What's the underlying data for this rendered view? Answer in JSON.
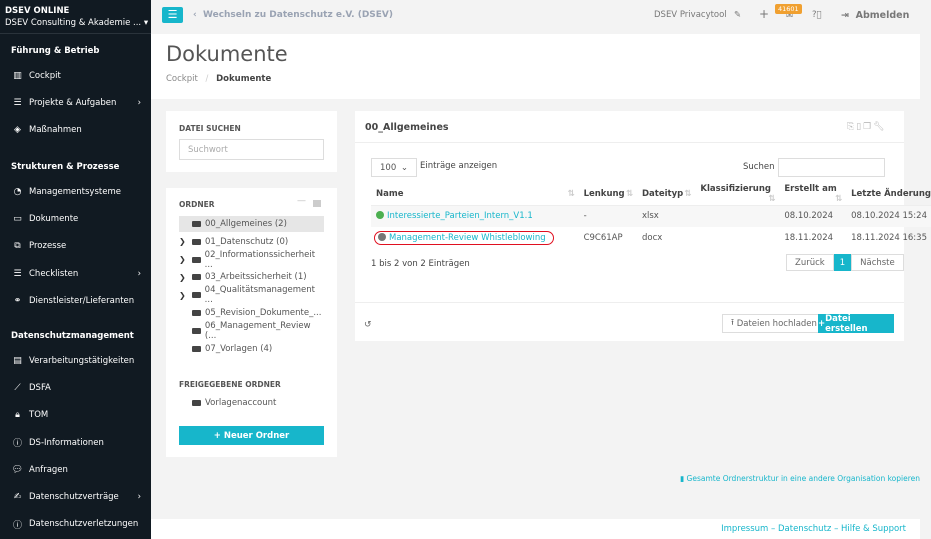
{
  "sidebar": {
    "org_title": "DSEV ONLINE",
    "org_name": "DSEV Consulting & Akademie ...",
    "sections": [
      {
        "title": "Führung & Betrieb",
        "items": [
          {
            "label": "Cockpit",
            "icon": "chart-icon"
          },
          {
            "label": "Projekte & Aufgaben",
            "icon": "list-icon",
            "chevron": true
          },
          {
            "label": "Maßnahmen",
            "icon": "diamond-icon"
          }
        ]
      },
      {
        "title": "Strukturen & Prozesse",
        "items": [
          {
            "label": "Managementsysteme",
            "icon": "gauge-icon"
          },
          {
            "label": "Dokumente",
            "icon": "folder-icon"
          },
          {
            "label": "Prozesse",
            "icon": "process-icon"
          },
          {
            "label": "Checklisten",
            "icon": "list-icon",
            "chevron": true
          },
          {
            "label": "Dienstleister/Lieferanten",
            "icon": "handshake-icon"
          }
        ]
      },
      {
        "title": "Datenschutzmanagement",
        "items": [
          {
            "label": "Verarbeitungstätigkeiten",
            "icon": "table-icon"
          },
          {
            "label": "DSFA",
            "icon": "chart-line-icon"
          },
          {
            "label": "TOM",
            "icon": "lock-icon"
          },
          {
            "label": "DS-Informationen",
            "icon": "info-icon"
          },
          {
            "label": "Anfragen",
            "icon": "chat-icon"
          },
          {
            "label": "Datenschutzverträge",
            "icon": "contract-icon",
            "chevron": true
          },
          {
            "label": "Datenschutzverletzungen",
            "icon": "alert-icon"
          }
        ]
      }
    ]
  },
  "topbar": {
    "switch_label": "Wechseln zu Datenschutz e.V. (DSEV)",
    "app_name": "DSEV Privacytool",
    "mail_badge": "41601",
    "logout": "Abmelden"
  },
  "header": {
    "title": "Dokumente",
    "breadcrumb": [
      "Cockpit",
      "Dokumente"
    ]
  },
  "file_search": {
    "label": "DATEI SUCHEN",
    "placeholder": "Suchwort"
  },
  "folders": {
    "label": "ORDNER",
    "items": [
      {
        "name": "00_Allgemeines (2)",
        "expandable": false,
        "active": true
      },
      {
        "name": "01_Datenschutz (0)",
        "expandable": true
      },
      {
        "name": "02_Informationssicherheit ...",
        "expandable": true
      },
      {
        "name": "03_Arbeitssicherheit (1)",
        "expandable": true
      },
      {
        "name": "04_Qualitätsmanagement ...",
        "expandable": true
      },
      {
        "name": "05_Revision_Dokumente_...",
        "expandable": false
      },
      {
        "name": "06_Management_Review (...",
        "expandable": false
      },
      {
        "name": "07_Vorlagen (4)",
        "expandable": false
      }
    ],
    "shared_label": "FREIGEGEBENE ORDNER",
    "shared_items": [
      "Vorlagenaccount"
    ],
    "new_folder": "Neuer Ordner"
  },
  "main": {
    "title": "00_Allgemeines",
    "page_size": "100",
    "entries_label": "Einträge anzeigen",
    "search_label": "Suchen",
    "columns": [
      "Name",
      "Lenkung",
      "Dateityp",
      "Klassifizierung",
      "Erstellt am",
      "Letzte Änderung"
    ],
    "rows": [
      {
        "status_color": "#4caf50",
        "name": "Interessierte_Parteien_Intern_V1.1",
        "lenkung": "-",
        "type": "xlsx",
        "class": "",
        "created": "08.10.2024",
        "modified": "08.10.2024 15:24"
      },
      {
        "status_color": "#777777",
        "name": "Management-Review Whistleblowing",
        "lenkung": "C9C61AP",
        "type": "docx",
        "class": "",
        "created": "18.11.2024",
        "modified": "18.11.2024 16:35",
        "highlighted": true
      }
    ],
    "info": "1 bis 2 von 2 Einträgen",
    "prev": "Zurück",
    "page": "1",
    "next": "Nächste",
    "upload": "Dateien hochladen",
    "create": "Datei erstellen"
  },
  "copy_link": "Gesamte Ordnerstruktur in eine andere Organisation kopieren",
  "footer": {
    "links": [
      "Impressum",
      "Datenschutz",
      "Hilfe & Support"
    ],
    "sep": "–"
  },
  "colors": {
    "accent": "#17b6cb",
    "sidebar": "#111a22",
    "highlight": "#e01020"
  }
}
